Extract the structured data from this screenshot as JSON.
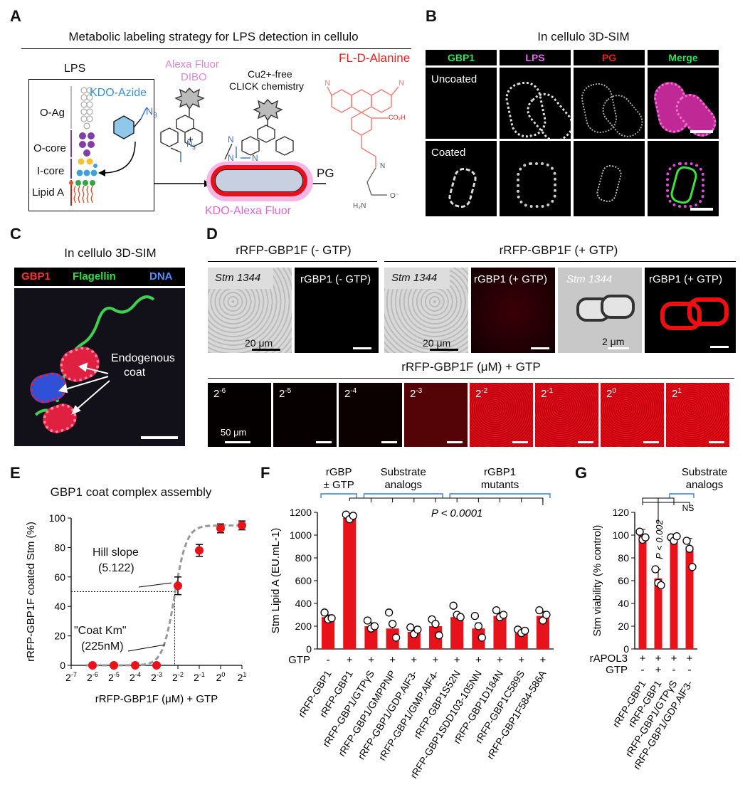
{
  "panels": {
    "A": {
      "letter": "A",
      "title": "Metabolic labeling strategy for LPS detection in cellulo",
      "lps": "LPS",
      "oag": "O-Ag",
      "ocore": "O-core",
      "icore": "I-core",
      "lipida": "Lipid A",
      "kdo_azide": "KDO-Azide",
      "n3": "N",
      "n3sub": "3",
      "alexa": "Alexa Fluor",
      "dibo": "DIBO",
      "cu_free_1": "Cu2+-free",
      "cu_free_2": "CLICK chemistry",
      "plus": "+",
      "fl_d_ala": "FL-D-Alanine",
      "pg": "PG",
      "kdo_alexa": "KDO-Alexa Fluor"
    },
    "B": {
      "letter": "B",
      "title": "In cellulo 3D-SIM",
      "cols": [
        "GBP1",
        "LPS",
        "PG",
        "Merge"
      ],
      "col_colors": [
        "#2ee05a",
        "#e06ee8",
        "#e5221f",
        "#2ee05a"
      ],
      "rows": [
        "Uncoated",
        "Coated"
      ]
    },
    "C": {
      "letter": "C",
      "title": "In cellulo 3D-SIM",
      "legend": [
        "GBP1",
        "Flagellin",
        "DNA"
      ],
      "legend_colors": [
        "#ff3030",
        "#30e040",
        "#5a8cff"
      ],
      "annotation_1": "Endogenous",
      "annotation_2": "coat"
    },
    "D": {
      "letter": "D",
      "left_title": "rRFP-GBP1F (- GTP)",
      "right_title": "rRFP-GBP1F (+ GTP)",
      "stm1344": "Stm 1344",
      "rgbp1_minus": "rGBP1 (- GTP)",
      "rgbp1_plus": "rGBP1 (+ GTP)",
      "scale_20": "20 μm",
      "scale_2": "2 μm",
      "row2_title": "rRFP-GBP1F (μM) + GTP",
      "conc_labels": [
        "2-6",
        "2-5",
        "2-4",
        "2-3",
        "2-2",
        "2-1",
        "20",
        "21"
      ],
      "conc_intensity": [
        0.02,
        0.03,
        0.05,
        0.35,
        0.8,
        0.88,
        0.92,
        0.96
      ],
      "scale_50": "50 μm"
    },
    "E": {
      "letter": "E",
      "title": "GBP1 coat complex assembly",
      "hill_1": "Hill slope",
      "hill_2": "(5.122)",
      "km_1": "\"Coat Km\"",
      "km_2": "(225nM)"
    },
    "F": {
      "letter": "F",
      "group_1a": "rGBP",
      "group_1b": "± GTP",
      "group_2a": "Substrate",
      "group_2b": "analogs",
      "group_3a": "rGBP1",
      "group_3b": "mutants",
      "pvalue": "P < 0.0001",
      "gtp_row_label": "GTP"
    },
    "G": {
      "letter": "G",
      "group_a": "Substrate",
      "group_b": "analogs",
      "pvalue": "P < 0.002",
      "ns": "NS",
      "row1_label": "rAPOL3",
      "row2_label": "GTP"
    }
  },
  "chart_data": [
    {
      "type": "scatter",
      "id": "E",
      "title": "GBP1 coat complex assembly",
      "xlabel": "rRFP-GBP1F (μM) + GTP",
      "ylabel": "rRFP-GBP1F coated Stm (%)",
      "xscale": "log2",
      "xticks": [
        "2-7",
        "2-6",
        "2-5",
        "2-4",
        "2-3",
        "2-2",
        "2-1",
        "20",
        "21"
      ],
      "xticks_exp": [
        -7,
        -6,
        -5,
        -4,
        -3,
        -2,
        -1,
        0,
        1
      ],
      "ylim": [
        0,
        100
      ],
      "yticks": [
        0,
        20,
        40,
        60,
        80,
        100
      ],
      "points_log2x": [
        -6,
        -5,
        -4,
        -3,
        -2,
        -1,
        0,
        1
      ],
      "y": [
        0,
        0,
        0,
        0,
        54,
        78,
        93,
        95
      ],
      "err": [
        0,
        0,
        0,
        0,
        6,
        4,
        3,
        3
      ],
      "fit": {
        "type": "hill",
        "hill_slope": 5.122,
        "km_uM": 0.225,
        "top": 95
      },
      "point_color": "#e8121a"
    },
    {
      "type": "bar",
      "id": "F",
      "ylabel": "Stm Lipid A (EU.mL-1)",
      "ylim": [
        0,
        1200
      ],
      "yticks": [
        0,
        200,
        400,
        600,
        800,
        1000,
        1200
      ],
      "categories": [
        "rRFP-GBP1",
        "rRFP-GBP1",
        "rRFP-GBP1/GTPγS",
        "rRFP-GBP1/GMPPNP",
        "rRFP-GBP1/GDP.AlF3-",
        "rRFP-GBP1/GMP.AlF4-",
        "rRFP-GBP1S52N",
        "rRFP-GBP1SDD103-105NN",
        "rRFP-GBP1D184N",
        "rRFP-GBP1C589S",
        "rRFP-GBP1F584-586A"
      ],
      "gtp": [
        "-",
        "+",
        "+",
        "+",
        "+",
        "+",
        "+",
        "+",
        "+",
        "+",
        "+"
      ],
      "values": [
        280,
        1150,
        200,
        180,
        150,
        200,
        280,
        180,
        290,
        150,
        290
      ],
      "err": [
        20,
        30,
        30,
        50,
        30,
        40,
        40,
        50,
        30,
        20,
        40
      ],
      "points": [
        [
          320,
          260,
          270
        ],
        [
          1180,
          1140,
          1170
        ],
        [
          250,
          180,
          200
        ],
        [
          320,
          220,
          100
        ],
        [
          190,
          130,
          170
        ],
        [
          260,
          220,
          120
        ],
        [
          380,
          300,
          280
        ],
        [
          290,
          200,
          100
        ],
        [
          340,
          280,
          300
        ],
        [
          170,
          140,
          160
        ],
        [
          340,
          250,
          300
        ]
      ],
      "bar_color": "#e8121a"
    },
    {
      "type": "bar",
      "id": "G",
      "ylabel": "Stm viability (% control)",
      "ylim": [
        0,
        120
      ],
      "yticks": [
        0,
        20,
        40,
        60,
        80,
        100,
        120
      ],
      "categories": [
        "rRFP-GBP1",
        "rRFP-GBP1",
        "rRFP-GBP1/GTPγS",
        "rRFP-GBP1/GDP.AlF3-"
      ],
      "rapol3": [
        "+",
        "+",
        "+",
        "+"
      ],
      "gtp": [
        "-",
        "+",
        "-",
        "-"
      ],
      "values": [
        100,
        62,
        97,
        90
      ],
      "err": [
        5,
        8,
        4,
        7
      ],
      "points": [
        [
          103,
          96,
          98
        ],
        [
          70,
          58,
          56
        ],
        [
          98,
          95,
          99
        ],
        [
          95,
          88,
          72
        ]
      ],
      "bar_color": "#e8121a"
    }
  ]
}
